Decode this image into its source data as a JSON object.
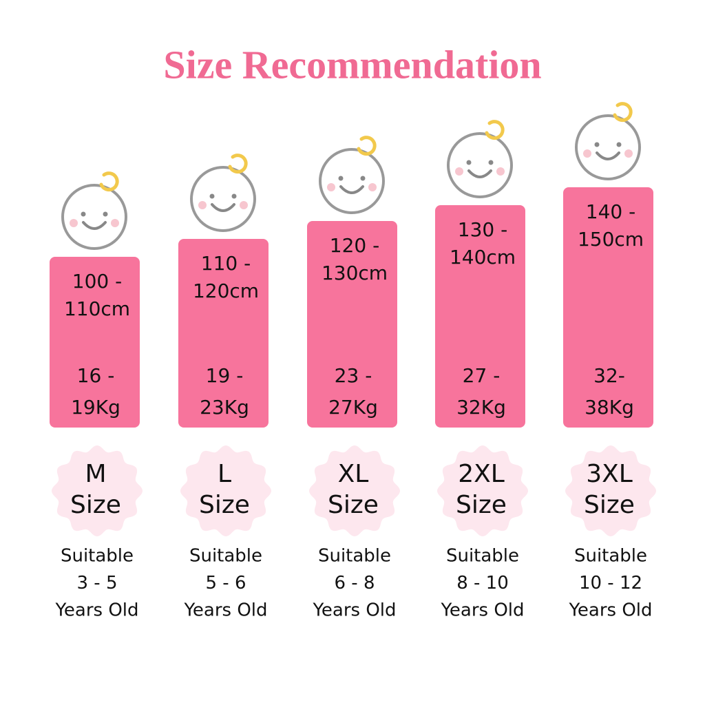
{
  "header": {
    "title": "Size Recommendation"
  },
  "items": [
    {
      "height": [
        "100 -",
        "110cm"
      ],
      "weight": [
        "16 -",
        "19Kg"
      ],
      "size": [
        "M",
        "Size"
      ],
      "age": [
        "Suitable",
        "3 - 5",
        "Years Old"
      ]
    },
    {
      "height": [
        "110 -",
        "120cm"
      ],
      "weight": [
        "19 -",
        "23Kg"
      ],
      "size": [
        "L",
        "Size"
      ],
      "age": [
        "Suitable",
        "5 - 6",
        "Years Old"
      ]
    },
    {
      "height": [
        "120 -",
        "130cm"
      ],
      "weight": [
        "23 -",
        "27Kg"
      ],
      "size": [
        "XL",
        "Size"
      ],
      "age": [
        "Suitable",
        "6 - 8",
        "Years Old"
      ]
    },
    {
      "height": [
        "130 -",
        "140cm"
      ],
      "weight": [
        "27 -",
        "32Kg"
      ],
      "size": [
        "2XL",
        "Size"
      ],
      "age": [
        "Suitable",
        "8 - 10",
        "Years Old"
      ]
    },
    {
      "height": [
        "140 -",
        "150cm"
      ],
      "weight": [
        "32-",
        "38Kg"
      ],
      "size": [
        "3XL",
        "Size"
      ],
      "age": [
        "Suitable",
        "10 - 12",
        "Years Old"
      ]
    }
  ]
}
